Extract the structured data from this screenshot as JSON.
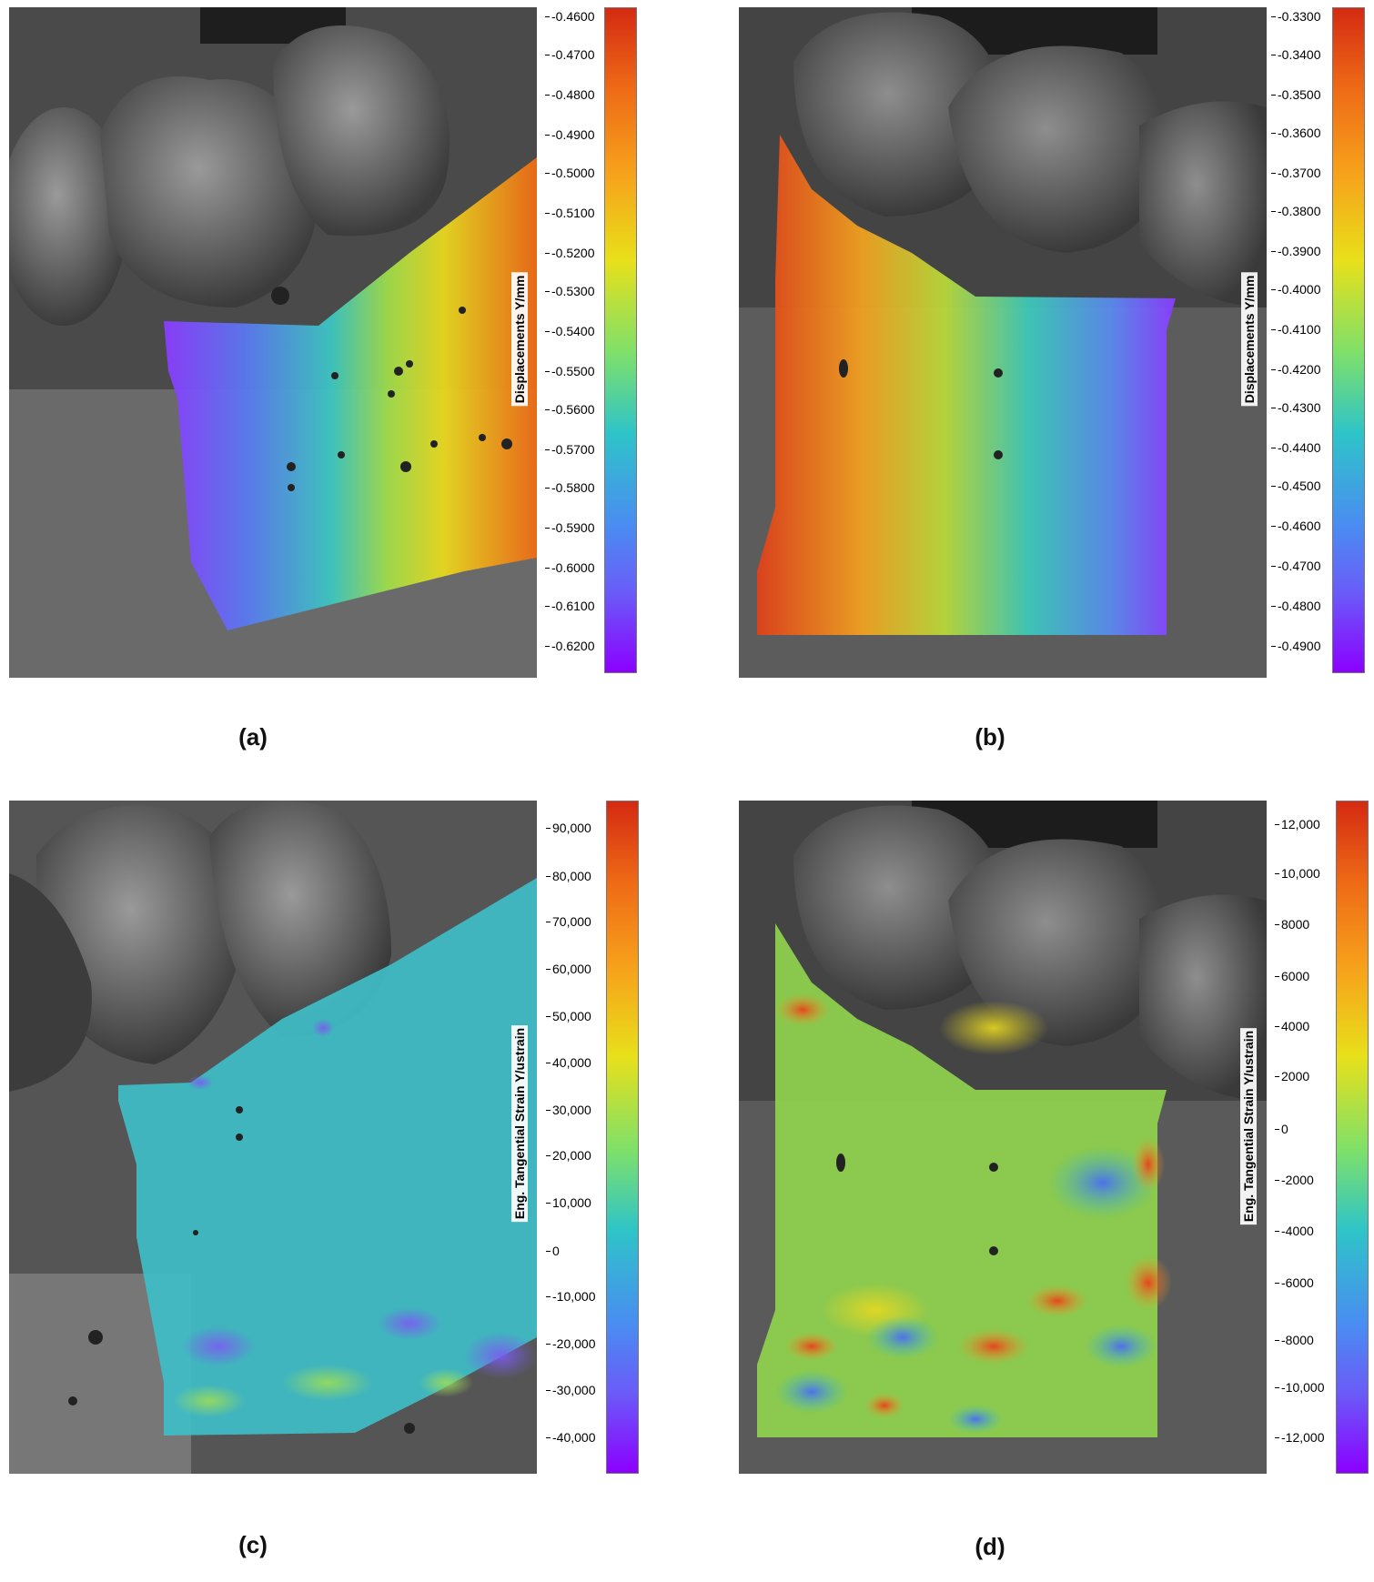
{
  "panels": [
    {
      "caption": "(a)",
      "colorbar_title": "Displacements Y/mm",
      "ticks": [
        "-0.4600",
        "-0.4700",
        "-0.4800",
        "-0.4900",
        "-0.5000",
        "-0.5100",
        "-0.5200",
        "-0.5300",
        "-0.5400",
        "-0.5500",
        "-0.5600",
        "-0.5700",
        "-0.5800",
        "-0.5900",
        "-0.6000",
        "-0.6100",
        "-0.6200"
      ],
      "field_direction": "violet-left to red-right"
    },
    {
      "caption": "(b)",
      "colorbar_title": "Displacements Y/mm",
      "ticks": [
        "-0.3300",
        "-0.3400",
        "-0.3500",
        "-0.3600",
        "-0.3700",
        "-0.3800",
        "-0.3900",
        "-0.4000",
        "-0.4100",
        "-0.4200",
        "-0.4300",
        "-0.4400",
        "-0.4500",
        "-0.4600",
        "-0.4700",
        "-0.4800",
        "-0.4900"
      ],
      "field_direction": "red-left to violet-right"
    },
    {
      "caption": "(c)",
      "colorbar_title": "Eng. Tangential Strain Y/ustrain",
      "ticks": [
        "90,000",
        "80,000",
        "70,000",
        "60,000",
        "50,000",
        "40,000",
        "30,000",
        "20,000",
        "10,000",
        "0",
        "-10,000",
        "-20,000",
        "-30,000",
        "-40,000"
      ],
      "field_direction": "mostly uniform cyan"
    },
    {
      "caption": "(d)",
      "colorbar_title": "Eng. Tangential Strain Y/ustrain",
      "ticks": [
        "12,000",
        "10,000",
        "8000",
        "6000",
        "4000",
        "2000",
        "0",
        "-2000",
        "-4000",
        "-6000",
        "-8000",
        "-10,000",
        "-12,000"
      ],
      "field_direction": "mixed green with red and blue patches"
    }
  ],
  "colormap": [
    "#8b00ff",
    "#4a6cf2",
    "#2ec4c8",
    "#7ee06a",
    "#e8e01a",
    "#f7a21b",
    "#e84a1a",
    "#d42a12"
  ]
}
